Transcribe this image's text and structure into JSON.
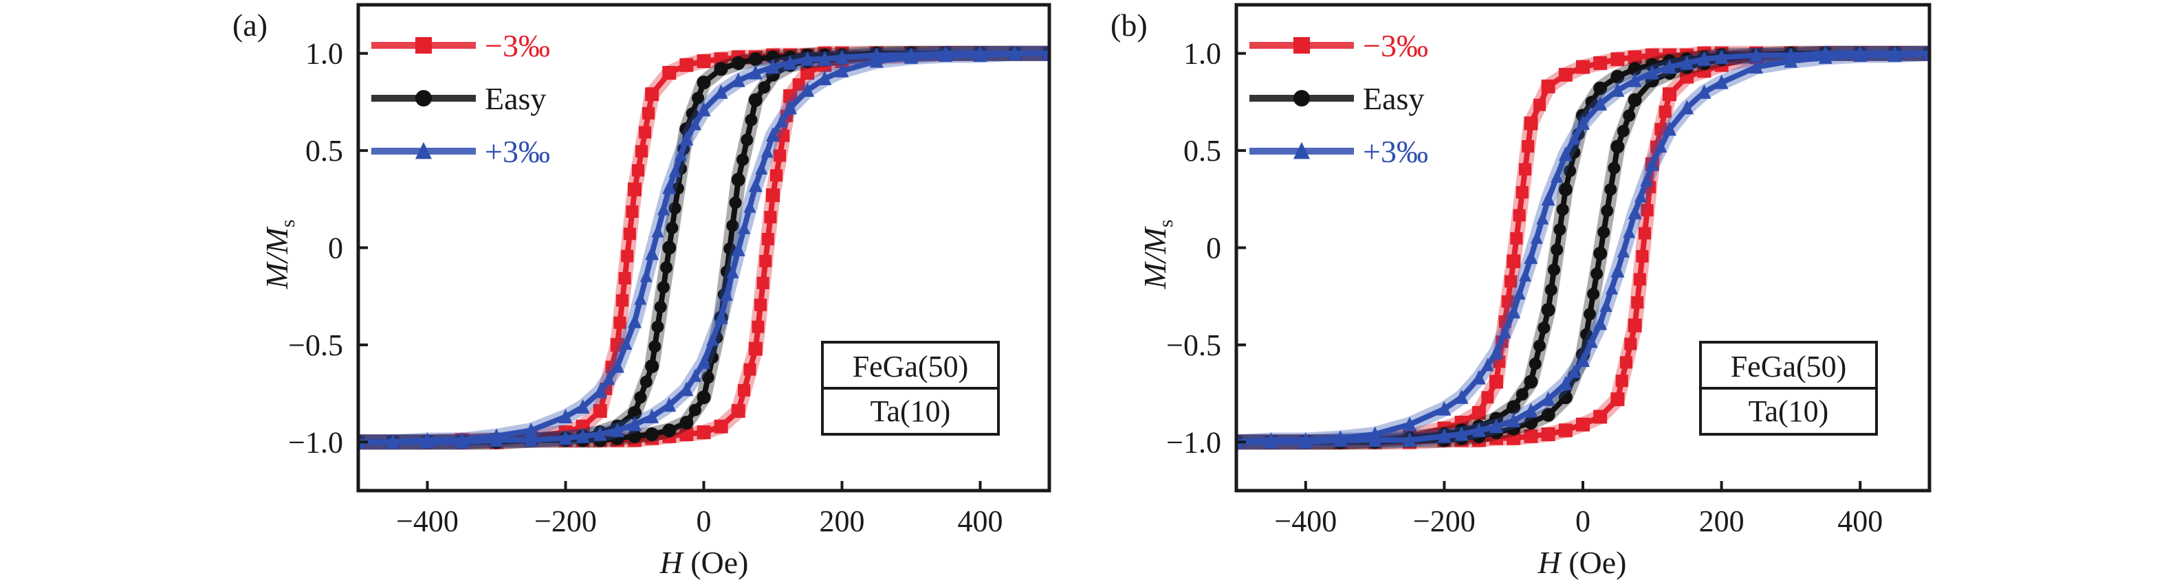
{
  "chart_data": [
    {
      "type": "line",
      "panel_label": "(a)",
      "xlabel_italic": "H",
      "xlabel_unit": " (Oe)",
      "ylabel_main": "M/M",
      "ylabel_sub": "s",
      "xlim": [
        -500,
        500
      ],
      "ylim": [
        -1.25,
        1.25
      ],
      "xticks": [
        -400,
        -200,
        0,
        200,
        400
      ],
      "xtick_labels": [
        "−400",
        "−200",
        "0",
        "200",
        "400"
      ],
      "yticks": [
        -1.0,
        -0.5,
        0,
        0.5,
        1.0
      ],
      "ytick_labels": [
        "−1.0",
        "−0.5",
        "0",
        "0.5",
        "1.0"
      ],
      "grid": false,
      "legend_position": "top-left",
      "annotation_box": {
        "position": "bottom-right",
        "lines": [
          "FeGa(50)",
          "Ta(10)"
        ]
      },
      "x": [
        -500,
        -450,
        -400,
        -350,
        -300,
        -250,
        -200,
        -175,
        -150,
        -125,
        -100,
        -75,
        -50,
        -25,
        0,
        25,
        50,
        75,
        100,
        125,
        150,
        175,
        200,
        250,
        300,
        350,
        400,
        450,
        500
      ],
      "series": [
        {
          "name": "−3‰",
          "color": "#e3202b",
          "marker": "square",
          "descending": [
            -1.0,
            -1.0,
            -1.0,
            -0.99,
            -0.99,
            -0.97,
            -0.95,
            -0.92,
            -0.84,
            -0.5,
            0.3,
            0.79,
            0.9,
            0.94,
            0.96,
            0.97,
            0.98,
            0.98,
            0.99,
            0.99,
            0.99,
            1.0,
            1.0,
            1.0,
            1.0,
            1.0,
            1.0,
            1.0,
            1.0
          ],
          "ascending": [
            -1.0,
            -1.0,
            -1.0,
            -1.0,
            -1.0,
            -0.99,
            -0.99,
            -0.99,
            -0.99,
            -0.99,
            -0.99,
            -0.98,
            -0.97,
            -0.96,
            -0.95,
            -0.92,
            -0.84,
            -0.52,
            0.27,
            0.78,
            0.9,
            0.94,
            0.96,
            0.98,
            0.99,
            1.0,
            1.0,
            1.0,
            1.0
          ]
        },
        {
          "name": "Easy",
          "color": "#111111",
          "marker": "circle",
          "descending": [
            -1.0,
            -1.0,
            -1.0,
            -1.0,
            -0.99,
            -0.99,
            -0.98,
            -0.97,
            -0.95,
            -0.92,
            -0.85,
            -0.61,
            0.0,
            0.61,
            0.85,
            0.92,
            0.95,
            0.97,
            0.98,
            0.98,
            0.99,
            0.99,
            0.99,
            1.0,
            1.0,
            1.0,
            1.0,
            1.0,
            1.0
          ],
          "ascending": [
            -1.0,
            -1.0,
            -1.0,
            -1.0,
            -1.0,
            -0.99,
            -0.99,
            -0.99,
            -0.99,
            -0.98,
            -0.97,
            -0.96,
            -0.94,
            -0.9,
            -0.77,
            -0.36,
            0.35,
            0.76,
            0.89,
            0.94,
            0.96,
            0.97,
            0.98,
            0.99,
            1.0,
            1.0,
            1.0,
            1.0,
            1.0
          ]
        },
        {
          "name": "+3‰",
          "color": "#2f4fb0",
          "marker": "triangle",
          "descending": [
            -1.0,
            -1.0,
            -0.99,
            -0.99,
            -0.97,
            -0.94,
            -0.87,
            -0.82,
            -0.74,
            -0.61,
            -0.38,
            -0.03,
            0.31,
            0.56,
            0.71,
            0.8,
            0.86,
            0.9,
            0.93,
            0.95,
            0.97,
            0.97,
            0.98,
            0.99,
            0.99,
            1.0,
            1.0,
            1.0,
            1.0
          ],
          "ascending": [
            -1.0,
            -1.0,
            -1.0,
            -1.0,
            -0.99,
            -0.99,
            -0.98,
            -0.97,
            -0.96,
            -0.94,
            -0.91,
            -0.87,
            -0.81,
            -0.73,
            -0.59,
            -0.36,
            -0.01,
            0.32,
            0.58,
            0.72,
            0.81,
            0.87,
            0.91,
            0.96,
            0.98,
            0.99,
            0.99,
            1.0,
            1.0
          ]
        }
      ]
    },
    {
      "type": "line",
      "panel_label": "(b)",
      "xlabel_italic": "H",
      "xlabel_unit": " (Oe)",
      "ylabel_main": "M/M",
      "ylabel_sub": "s",
      "xlim": [
        -500,
        500
      ],
      "ylim": [
        -1.25,
        1.25
      ],
      "xticks": [
        -400,
        -200,
        0,
        200,
        400
      ],
      "xtick_labels": [
        "−400",
        "−200",
        "0",
        "200",
        "400"
      ],
      "yticks": [
        -1.0,
        -0.5,
        0,
        0.5,
        1.0
      ],
      "ytick_labels": [
        "−1.0",
        "−0.5",
        "0",
        "0.5",
        "1.0"
      ],
      "grid": false,
      "legend_position": "top-left",
      "annotation_box": {
        "position": "bottom-right",
        "lines": [
          "FeGa(50)",
          "Ta(10)"
        ]
      },
      "x": [
        -500,
        -450,
        -400,
        -350,
        -300,
        -250,
        -200,
        -175,
        -150,
        -125,
        -100,
        -75,
        -50,
        -25,
        0,
        25,
        50,
        75,
        100,
        125,
        150,
        175,
        200,
        250,
        300,
        350,
        400,
        450,
        500
      ],
      "series": [
        {
          "name": "−3‰",
          "color": "#e3202b",
          "marker": "square",
          "descending": [
            -1.0,
            -1.0,
            -1.0,
            -1.0,
            -0.99,
            -0.97,
            -0.93,
            -0.9,
            -0.85,
            -0.69,
            -0.07,
            0.64,
            0.83,
            0.89,
            0.93,
            0.95,
            0.97,
            0.98,
            0.99,
            0.99,
            0.99,
            1.0,
            1.0,
            1.0,
            1.0,
            1.0,
            1.0,
            1.0,
            1.0
          ],
          "ascending": [
            -1.0,
            -1.0,
            -1.0,
            -1.0,
            -1.0,
            -1.0,
            -0.99,
            -0.99,
            -0.99,
            -0.98,
            -0.98,
            -0.97,
            -0.96,
            -0.94,
            -0.91,
            -0.87,
            -0.78,
            -0.4,
            0.43,
            0.79,
            0.88,
            0.91,
            0.94,
            0.98,
            0.99,
            1.0,
            1.0,
            1.0,
            1.0
          ]
        },
        {
          "name": "Easy",
          "color": "#111111",
          "marker": "circle",
          "descending": [
            -1.0,
            -1.0,
            -1.0,
            -1.0,
            -0.99,
            -0.98,
            -0.96,
            -0.94,
            -0.92,
            -0.88,
            -0.82,
            -0.69,
            -0.32,
            0.3,
            0.68,
            0.82,
            0.88,
            0.92,
            0.94,
            0.96,
            0.97,
            0.98,
            0.99,
            0.99,
            1.0,
            1.0,
            1.0,
            1.0,
            1.0
          ],
          "ascending": [
            -1.0,
            -1.0,
            -1.0,
            -1.0,
            -1.0,
            -0.99,
            -0.99,
            -0.98,
            -0.97,
            -0.95,
            -0.93,
            -0.9,
            -0.86,
            -0.77,
            -0.55,
            -0.03,
            0.52,
            0.76,
            0.86,
            0.9,
            0.93,
            0.95,
            0.97,
            0.99,
            0.99,
            1.0,
            1.0,
            1.0,
            1.0
          ]
        },
        {
          "name": "+3‰",
          "color": "#2f4fb0",
          "marker": "triangle",
          "descending": [
            -1.0,
            -0.99,
            -0.99,
            -0.98,
            -0.96,
            -0.91,
            -0.83,
            -0.77,
            -0.67,
            -0.54,
            -0.33,
            -0.05,
            0.25,
            0.48,
            0.64,
            0.74,
            0.81,
            0.86,
            0.9,
            0.93,
            0.95,
            0.97,
            0.98,
            0.99,
            0.99,
            1.0,
            1.0,
            1.0,
            1.0
          ],
          "ascending": [
            -1.0,
            -1.0,
            -1.0,
            -0.99,
            -0.99,
            -0.99,
            -0.97,
            -0.96,
            -0.94,
            -0.92,
            -0.89,
            -0.84,
            -0.78,
            -0.7,
            -0.58,
            -0.39,
            -0.12,
            0.18,
            0.43,
            0.61,
            0.72,
            0.8,
            0.85,
            0.93,
            0.96,
            0.98,
            0.99,
            0.99,
            1.0
          ]
        }
      ]
    }
  ]
}
